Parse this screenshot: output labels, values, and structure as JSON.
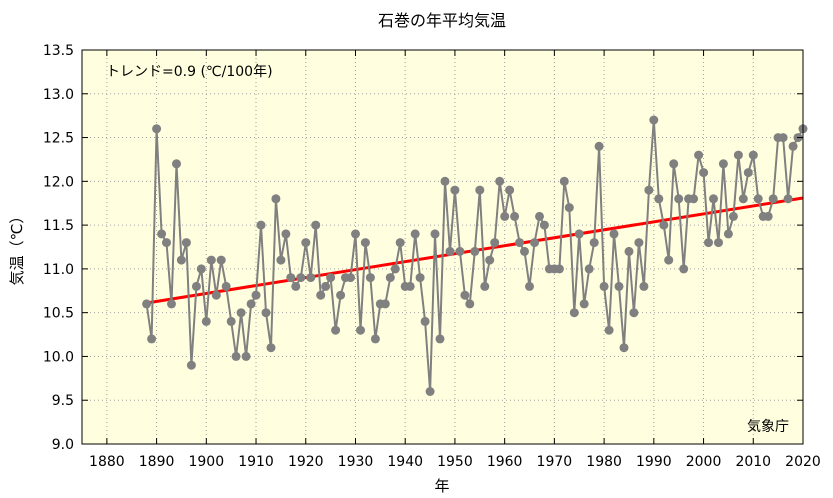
{
  "chart_data": {
    "type": "line",
    "title": "石巻の年平均気温",
    "xlabel": "年",
    "ylabel": "気温（℃）",
    "xlim": [
      1875,
      2020
    ],
    "ylim": [
      9.0,
      13.5
    ],
    "xticks": [
      1880,
      1890,
      1900,
      1910,
      1920,
      1930,
      1940,
      1950,
      1960,
      1970,
      1980,
      1990,
      2000,
      2010,
      2020
    ],
    "yticks": [
      9.0,
      9.5,
      10.0,
      10.5,
      11.0,
      11.5,
      12.0,
      12.5,
      13.0,
      13.5
    ],
    "xtick_labels": [
      "1880",
      "1890",
      "1900",
      "1910",
      "1920",
      "1930",
      "1940",
      "1950",
      "1960",
      "1970",
      "1980",
      "1990",
      "2000",
      "2010",
      "2020"
    ],
    "ytick_labels": [
      "9.0",
      "9.5",
      "10.0",
      "10.5",
      "11.0",
      "11.5",
      "12.0",
      "12.5",
      "13.0",
      "13.5"
    ],
    "grid": true,
    "background_color": "#ffffe0",
    "series": [
      {
        "color": "#808080",
        "x": [
          1888,
          1889,
          1890,
          1891,
          1892,
          1893,
          1894,
          1895,
          1896,
          1897,
          1898,
          1899,
          1900,
          1901,
          1902,
          1903,
          1904,
          1905,
          1906,
          1907,
          1908,
          1909,
          1910,
          1911,
          1912,
          1913,
          1914,
          1915,
          1916,
          1917,
          1918,
          1919,
          1920,
          1921,
          1922,
          1923,
          1924,
          1925,
          1926,
          1927,
          1928,
          1929,
          1930,
          1931,
          1932,
          1933,
          1934,
          1935,
          1936,
          1937,
          1938,
          1939,
          1940,
          1941,
          1942,
          1943,
          1944,
          1945,
          1946,
          1947,
          1948,
          1949,
          1950,
          1951,
          1952,
          1953,
          1954,
          1955,
          1956,
          1957,
          1958,
          1959,
          1960,
          1961,
          1962,
          1963,
          1964,
          1965,
          1966,
          1967,
          1968,
          1969,
          1970,
          1971,
          1972,
          1973,
          1974,
          1975,
          1976,
          1977,
          1978,
          1979,
          1980,
          1981,
          1982,
          1983,
          1984,
          1985,
          1986,
          1987,
          1988,
          1989,
          1990,
          1991,
          1992,
          1993,
          1994,
          1995,
          1996,
          1997,
          1998,
          1999,
          2000,
          2001,
          2002,
          2003,
          2004,
          2005,
          2006,
          2007,
          2008,
          2009,
          2010,
          2011,
          2012,
          2013,
          2014,
          2015,
          2016,
          2017,
          2018,
          2019,
          2020
        ],
        "values": [
          10.6,
          10.2,
          12.6,
          11.4,
          11.3,
          10.6,
          12.2,
          11.1,
          11.3,
          9.9,
          10.8,
          11.0,
          10.4,
          11.1,
          10.7,
          11.1,
          10.8,
          10.4,
          10.0,
          10.5,
          10.0,
          10.6,
          10.7,
          11.5,
          10.5,
          10.1,
          11.8,
          11.1,
          11.4,
          10.9,
          10.8,
          10.9,
          11.3,
          10.9,
          11.5,
          10.7,
          10.8,
          10.9,
          10.3,
          10.7,
          10.9,
          10.9,
          11.4,
          10.3,
          11.3,
          10.9,
          10.2,
          10.6,
          10.6,
          10.9,
          11.0,
          11.3,
          10.8,
          10.8,
          11.4,
          10.9,
          10.4,
          9.6,
          11.4,
          10.2,
          12.0,
          11.2,
          11.9,
          11.2,
          10.7,
          10.6,
          11.2,
          11.9,
          10.8,
          11.1,
          11.3,
          12.0,
          11.6,
          11.9,
          11.6,
          11.3,
          11.2,
          10.8,
          11.3,
          11.6,
          11.5,
          11.0,
          11.0,
          11.0,
          12.0,
          11.7,
          10.5,
          11.4,
          10.6,
          11.0,
          11.3,
          12.4,
          10.8,
          10.3,
          11.4,
          10.8,
          10.1,
          11.2,
          10.5,
          11.3,
          10.8,
          11.9,
          12.7,
          11.8,
          11.5,
          11.1,
          12.2,
          11.8,
          11.0,
          11.8,
          11.8,
          12.3,
          12.1,
          11.3,
          11.8,
          11.3,
          12.2,
          11.4,
          11.6,
          12.3,
          11.8,
          12.1,
          12.3,
          11.8,
          11.6,
          11.6,
          11.8,
          12.5,
          12.5,
          11.8,
          12.4,
          12.5,
          12.6
        ]
      }
    ],
    "trend": {
      "color": "#ff0000",
      "x": [
        1888,
        2020
      ],
      "values": [
        10.61,
        11.81
      ]
    },
    "annotations": {
      "trend_label": "トレンド=0.9 (℃/100年)",
      "source_label": "気象庁"
    }
  }
}
